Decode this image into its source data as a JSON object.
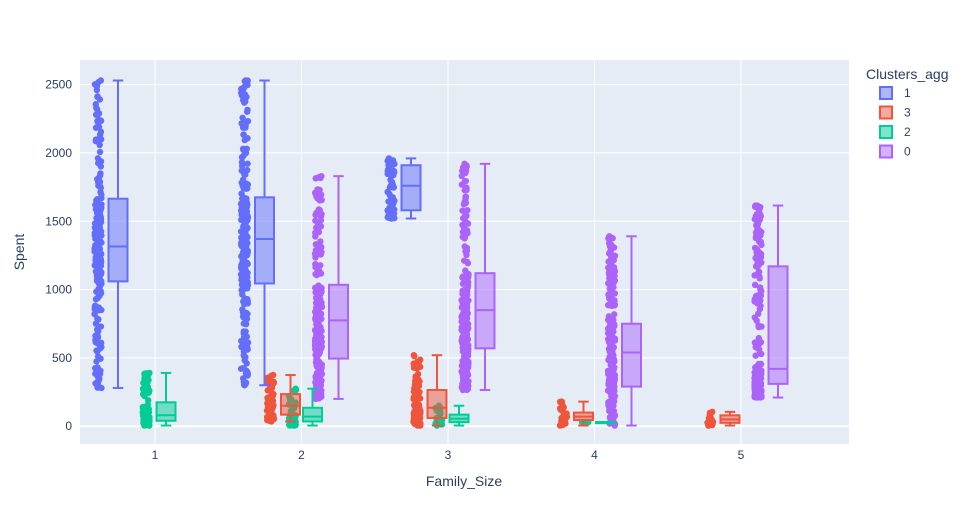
{
  "chart_data": {
    "type": "box",
    "title": "",
    "xlabel": "Family_Size",
    "ylabel": "Spent",
    "categories": [
      "1",
      "2",
      "3",
      "4",
      "5"
    ],
    "ylim": [
      -130,
      2680
    ],
    "yticks": [
      0,
      500,
      1000,
      1500,
      2000,
      2500
    ],
    "grid": true,
    "legend": {
      "title": "Clusters_agg",
      "placement": "top-right",
      "entries": [
        "1",
        "3",
        "2",
        "0"
      ]
    },
    "series": [
      {
        "name": "1",
        "color": "#636efa",
        "boxes": [
          {
            "x": "1",
            "min": 280,
            "q1": 1060,
            "median": 1315,
            "q3": 1665,
            "max": 2530
          },
          {
            "x": "2",
            "min": 300,
            "q1": 1045,
            "median": 1370,
            "q3": 1675,
            "max": 2530
          },
          {
            "x": "3",
            "min": 1520,
            "q1": 1580,
            "median": 1760,
            "q3": 1910,
            "max": 1960
          }
        ]
      },
      {
        "name": "3",
        "color": "#ef553b",
        "boxes": [
          {
            "x": "2",
            "min": 35,
            "q1": 85,
            "median": 150,
            "q3": 235,
            "max": 375
          },
          {
            "x": "3",
            "min": 5,
            "q1": 60,
            "median": 135,
            "q3": 265,
            "max": 520
          },
          {
            "x": "4",
            "min": 5,
            "q1": 45,
            "median": 70,
            "q3": 100,
            "max": 180
          },
          {
            "x": "5",
            "min": 5,
            "q1": 25,
            "median": 50,
            "q3": 80,
            "max": 105
          }
        ]
      },
      {
        "name": "2",
        "color": "#00cc96",
        "boxes": [
          {
            "x": "1",
            "min": 5,
            "q1": 40,
            "median": 80,
            "q3": 175,
            "max": 390
          },
          {
            "x": "2",
            "min": 5,
            "q1": 35,
            "median": 70,
            "q3": 135,
            "max": 275
          },
          {
            "x": "3",
            "min": 5,
            "q1": 30,
            "median": 55,
            "q3": 85,
            "max": 150
          },
          {
            "x": "4",
            "min": 30,
            "q1": 30,
            "median": 30,
            "q3": 30,
            "max": 30
          }
        ]
      },
      {
        "name": "0",
        "color": "#ab63fa",
        "boxes": [
          {
            "x": "2",
            "min": 200,
            "q1": 495,
            "median": 775,
            "q3": 1035,
            "max": 1830
          },
          {
            "x": "3",
            "min": 265,
            "q1": 570,
            "median": 850,
            "q3": 1120,
            "max": 1920
          },
          {
            "x": "4",
            "min": 5,
            "q1": 290,
            "median": 540,
            "q3": 750,
            "max": 1390
          },
          {
            "x": "5",
            "min": 210,
            "q1": 310,
            "median": 420,
            "q3": 1170,
            "max": 1615
          }
        ]
      }
    ]
  }
}
